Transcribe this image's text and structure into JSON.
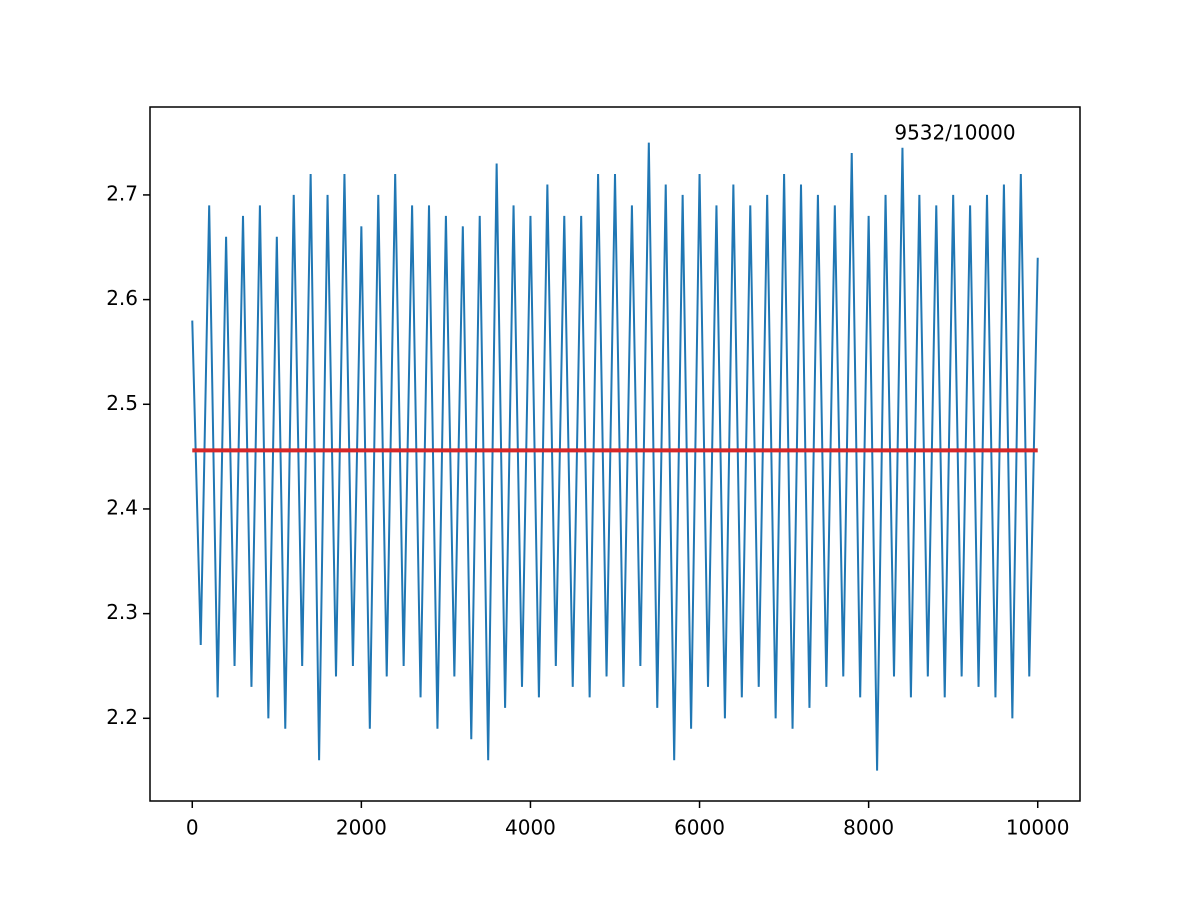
{
  "chart_data": {
    "type": "line",
    "annotation": "9532/10000",
    "series": [
      {
        "color": "#2077b4",
        "x": [
          0,
          100,
          200,
          300,
          400,
          500,
          600,
          700,
          800,
          900,
          1000,
          1100,
          1200,
          1300,
          1400,
          1500,
          1600,
          1700,
          1800,
          1900,
          2000,
          2100,
          2200,
          2300,
          2400,
          2500,
          2600,
          2700,
          2800,
          2900,
          3000,
          3100,
          3200,
          3300,
          3400,
          3500,
          3600,
          3700,
          3800,
          3900,
          4000,
          4100,
          4200,
          4300,
          4400,
          4500,
          4600,
          4700,
          4800,
          4900,
          5000,
          5100,
          5200,
          5300,
          5400,
          5500,
          5600,
          5700,
          5800,
          5900,
          6000,
          6100,
          6200,
          6300,
          6400,
          6500,
          6600,
          6700,
          6800,
          6900,
          7000,
          7100,
          7200,
          7300,
          7400,
          7500,
          7600,
          7700,
          7800,
          7900,
          8000,
          8100,
          8200,
          8300,
          8400,
          8500,
          8600,
          8700,
          8800,
          8900,
          9000,
          9100,
          9200,
          9300,
          9400,
          9500,
          9600,
          9700,
          9800,
          9900,
          10000
        ],
        "values": [
          2.58,
          2.27,
          2.69,
          2.22,
          2.66,
          2.25,
          2.68,
          2.23,
          2.69,
          2.2,
          2.66,
          2.19,
          2.7,
          2.25,
          2.72,
          2.16,
          2.7,
          2.24,
          2.72,
          2.25,
          2.67,
          2.19,
          2.7,
          2.24,
          2.72,
          2.25,
          2.69,
          2.22,
          2.69,
          2.19,
          2.68,
          2.24,
          2.67,
          2.18,
          2.68,
          2.16,
          2.73,
          2.21,
          2.69,
          2.23,
          2.68,
          2.22,
          2.71,
          2.25,
          2.68,
          2.23,
          2.68,
          2.22,
          2.72,
          2.24,
          2.72,
          2.23,
          2.69,
          2.25,
          2.75,
          2.21,
          2.71,
          2.16,
          2.7,
          2.19,
          2.72,
          2.23,
          2.69,
          2.2,
          2.71,
          2.22,
          2.69,
          2.23,
          2.7,
          2.2,
          2.72,
          2.19,
          2.71,
          2.21,
          2.7,
          2.23,
          2.69,
          2.24,
          2.74,
          2.22,
          2.68,
          2.15,
          2.7,
          2.24,
          2.745,
          2.22,
          2.7,
          2.24,
          2.69,
          2.22,
          2.7,
          2.24,
          2.69,
          2.23,
          2.7,
          2.22,
          2.71,
          2.2,
          2.72,
          2.24,
          2.64
        ],
        "width": 2
      },
      {
        "color": "#d62728",
        "x": [
          0,
          10000
        ],
        "values": [
          2.456,
          2.456
        ],
        "width": 4
      }
    ],
    "xlim": [
      -500,
      10500
    ],
    "ylim": [
      2.121,
      2.784
    ],
    "xticks": [
      0,
      2000,
      4000,
      6000,
      8000,
      10000
    ],
    "yticks": [
      2.2,
      2.3,
      2.4,
      2.5,
      2.6,
      2.7
    ],
    "grid": false
  }
}
